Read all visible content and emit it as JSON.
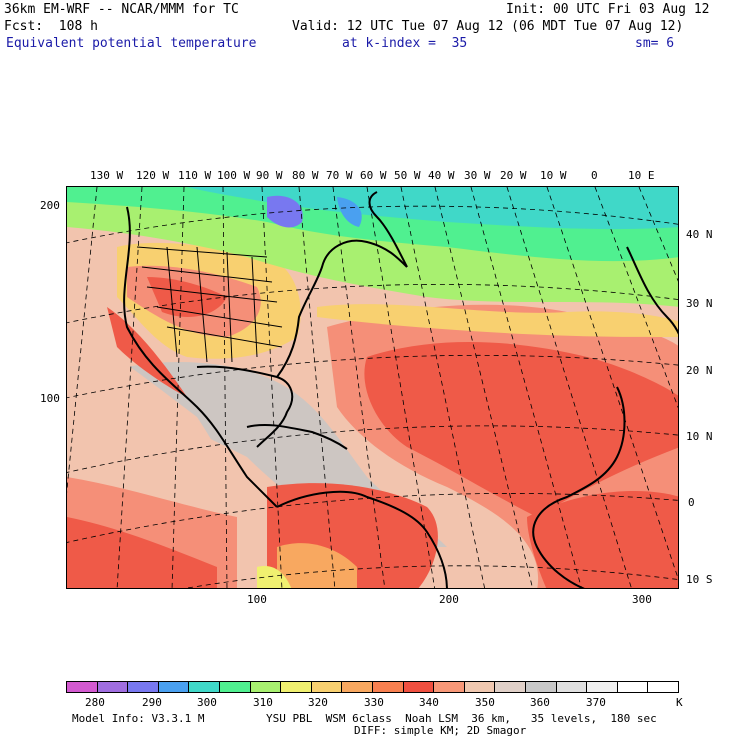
{
  "header": {
    "model": "36km EM-WRF -- NCAR/MMM for TC",
    "init": "Init: 00 UTC Fri 03 Aug 12",
    "fcst": "Fcst:  108 h",
    "valid": "Valid: 12 UTC Tue 07 Aug 12 (06 MDT Tue 07 Aug 12)",
    "field": "Equivalent potential temperature",
    "level": "at k-index =  35",
    "smooth": "sm= 6"
  },
  "map": {
    "lon_labels": [
      "130 W",
      "120 W",
      "110 W",
      "100 W",
      "90 W",
      "80 W",
      "70 W",
      "60 W",
      "50 W",
      "40 W",
      "30 W",
      "20 W",
      "10 W",
      "0",
      "10 E"
    ],
    "lat_labels": [
      "40 N",
      "30 N",
      "20 N",
      "10 N",
      "0",
      "10 S"
    ],
    "grid_y_labels": [
      "200",
      "100"
    ],
    "grid_x_labels": [
      "100",
      "200",
      "300"
    ]
  },
  "colorbar": {
    "labels": [
      "280",
      "290",
      "300",
      "310",
      "320",
      "330",
      "340",
      "350",
      "360",
      "370",
      "K"
    ],
    "colors": [
      "#d35ad0",
      "#a06ee0",
      "#7878f0",
      "#4aa0f0",
      "#40d8c8",
      "#50f090",
      "#a8f070",
      "#f0f070",
      "#f8d070",
      "#f8a860",
      "#f88050",
      "#f05040",
      "#f89878",
      "#f0c8b0",
      "#e0d0c8",
      "#c8c8c8",
      "#e0e0e0",
      "#f0f0f0",
      "#ffffff",
      "#ffffff"
    ]
  },
  "footer": {
    "model_info": "Model Info: V3.3.1 M",
    "physics": "YSU PBL  WSM 6class  Noah LSM  36 km,   35 levels,  180 sec",
    "diff": "DIFF: simple KM; 2D Smagor"
  }
}
